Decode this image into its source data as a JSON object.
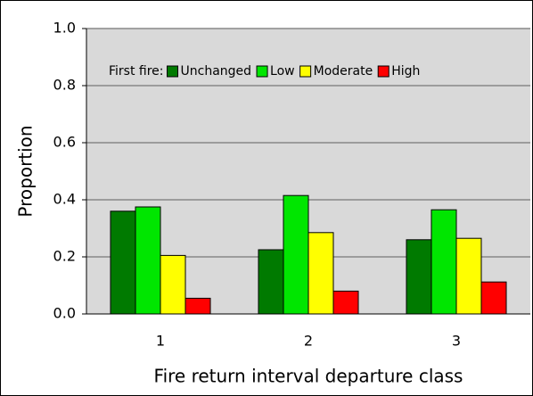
{
  "chart_data": {
    "type": "bar",
    "x_label": "Fire return interval departure class",
    "y_label": "Proportion",
    "legend_title": "First fire:",
    "categories": [
      "1",
      "2",
      "3"
    ],
    "series": [
      {
        "name": "Unchanged",
        "color": "#007a00",
        "values": [
          0.36,
          0.225,
          0.26
        ]
      },
      {
        "name": "Low",
        "color": "#00e600",
        "values": [
          0.375,
          0.415,
          0.365
        ]
      },
      {
        "name": "Moderate",
        "color": "#ffff00",
        "values": [
          0.205,
          0.285,
          0.265
        ]
      },
      {
        "name": "High",
        "color": "#ff0000",
        "values": [
          0.055,
          0.08,
          0.112
        ]
      }
    ],
    "ylim": [
      0,
      1
    ],
    "yticks": [
      {
        "value": 0,
        "label": "0.0"
      },
      {
        "value": 0.2,
        "label": "0.2"
      },
      {
        "value": 0.4,
        "label": "0.4"
      },
      {
        "value": 0.6,
        "label": "0.6"
      },
      {
        "value": 0.8,
        "label": "0.8"
      },
      {
        "value": 1,
        "label": "1.0"
      }
    ],
    "grid": true,
    "legend_position": "top"
  }
}
